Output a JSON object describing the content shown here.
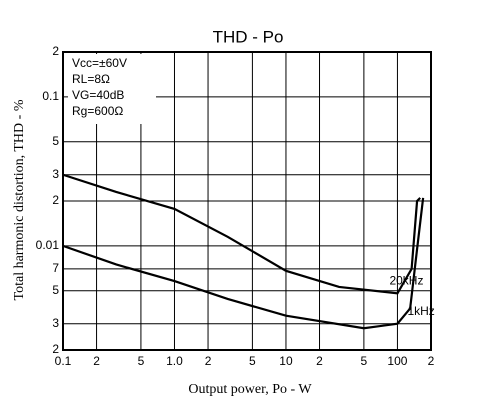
{
  "chart_data": {
    "type": "line",
    "title": "THD - Po",
    "xlabel": "Output power, Po - W",
    "ylabel": "Total harmonic distortion, THD - %",
    "annotations": [
      "Vcc=±60V",
      "RL=8Ω",
      "VG=40dB",
      "Rg=600Ω"
    ],
    "xlog": true,
    "ylog": true,
    "grid": true,
    "xlim": [
      0.1,
      200
    ],
    "ylim": [
      0.002,
      0.2
    ],
    "xticks": [
      0.1,
      {
        "value": 0.2,
        "label": "2"
      },
      {
        "value": 0.5,
        "label": "5"
      },
      {
        "value": 1,
        "label": "1.0"
      },
      {
        "value": 2,
        "label": "2"
      },
      {
        "value": 5,
        "label": "5"
      },
      10,
      {
        "value": 20,
        "label": "2"
      },
      {
        "value": 50,
        "label": "5"
      },
      100,
      {
        "value": 200,
        "label": "2"
      }
    ],
    "yticks": [
      {
        "value": 0.002,
        "label": "2"
      },
      {
        "value": 0.003,
        "label": "3"
      },
      {
        "value": 0.005,
        "label": "5"
      },
      {
        "value": 0.007,
        "label": "7"
      },
      0.01,
      {
        "value": 0.02,
        "label": "2"
      },
      {
        "value": 0.03,
        "label": "3"
      },
      {
        "value": 0.05,
        "label": "5"
      },
      0.1,
      {
        "value": 0.2,
        "label": "2"
      }
    ],
    "series": [
      {
        "name": "20kHz",
        "color": "#000000",
        "x": [
          0.1,
          0.3,
          1,
          3,
          10,
          30,
          100,
          134,
          150,
          160
        ],
        "values": [
          0.03,
          0.023,
          0.0177,
          0.0115,
          0.0068,
          0.0053,
          0.0048,
          0.007,
          0.02,
          0.021
        ]
      },
      {
        "name": "1kHz",
        "color": "#000000",
        "x": [
          0.1,
          0.3,
          1,
          3,
          10,
          50,
          100,
          130,
          150,
          170
        ],
        "values": [
          0.01,
          0.0075,
          0.0058,
          0.0044,
          0.0034,
          0.0028,
          0.003,
          0.0038,
          0.0095,
          0.021
        ]
      }
    ]
  }
}
